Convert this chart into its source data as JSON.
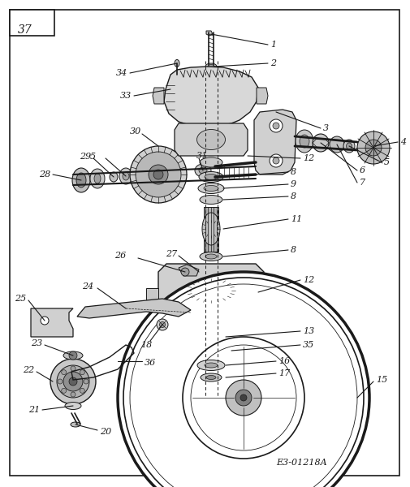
{
  "page_number": "37",
  "reference_code": "E3-01218A",
  "bg_color": "#ffffff",
  "line_color": "#1a1a1a",
  "text_color": "#1a1a1a",
  "fig_width": 5.06,
  "fig_height": 6.0,
  "dpi": 100
}
